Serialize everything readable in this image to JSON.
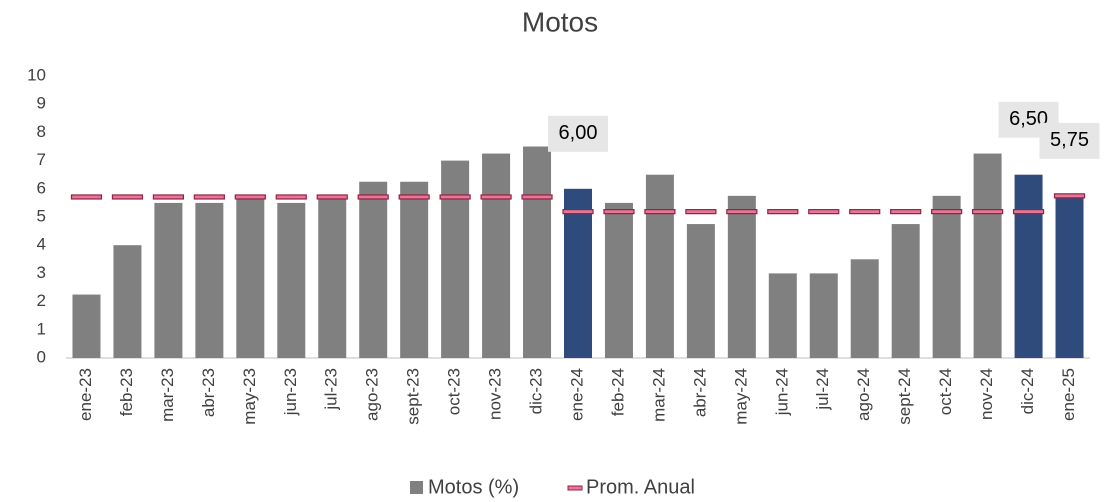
{
  "chart_data": {
    "type": "bar",
    "title": "Motos",
    "categories": [
      "ene-23",
      "feb-23",
      "mar-23",
      "abr-23",
      "may-23",
      "jun-23",
      "jul-23",
      "ago-23",
      "sept-23",
      "oct-23",
      "nov-23",
      "dic-23",
      "ene-24",
      "feb-24",
      "mar-24",
      "abr-24",
      "may-24",
      "jun-24",
      "jul-24",
      "ago-24",
      "sept-24",
      "oct-24",
      "nov-24",
      "dic-24",
      "ene-25"
    ],
    "series": [
      {
        "name": "Motos (%)",
        "color": "#808080",
        "colors": [
          "#808080",
          "#808080",
          "#808080",
          "#808080",
          "#808080",
          "#808080",
          "#808080",
          "#808080",
          "#808080",
          "#808080",
          "#808080",
          "#808080",
          "#2f4b7c",
          "#808080",
          "#808080",
          "#808080",
          "#808080",
          "#808080",
          "#808080",
          "#808080",
          "#808080",
          "#808080",
          "#808080",
          "#2f4b7c",
          "#2f4b7c"
        ],
        "values": [
          2.25,
          4,
          5.5,
          5.5,
          5.75,
          5.5,
          5.75,
          6.25,
          6.25,
          7,
          7.25,
          7.5,
          6,
          5.5,
          6.5,
          4.75,
          5.75,
          3,
          3,
          3.5,
          4.75,
          5.75,
          7.25,
          6.5,
          5.75
        ],
        "value_labels": [
          null,
          null,
          null,
          null,
          null,
          null,
          null,
          null,
          null,
          null,
          null,
          null,
          "6,00",
          null,
          null,
          null,
          null,
          null,
          null,
          null,
          null,
          null,
          null,
          "6,50",
          "5,75"
        ]
      },
      {
        "name": "Prom. Anual",
        "color": "#9b1c45",
        "marker": "dash",
        "values": [
          5.71,
          5.71,
          5.71,
          5.71,
          5.71,
          5.71,
          5.71,
          5.71,
          5.71,
          5.71,
          5.71,
          5.71,
          5.19,
          5.19,
          5.19,
          5.19,
          5.19,
          5.19,
          5.19,
          5.19,
          5.19,
          5.19,
          5.19,
          5.19,
          5.75
        ]
      }
    ],
    "ylim": [
      0,
      10
    ],
    "yticks": [
      0,
      1,
      2,
      3,
      4,
      5,
      6,
      7,
      8,
      9,
      10
    ],
    "grid": false,
    "legend": "bottom"
  }
}
